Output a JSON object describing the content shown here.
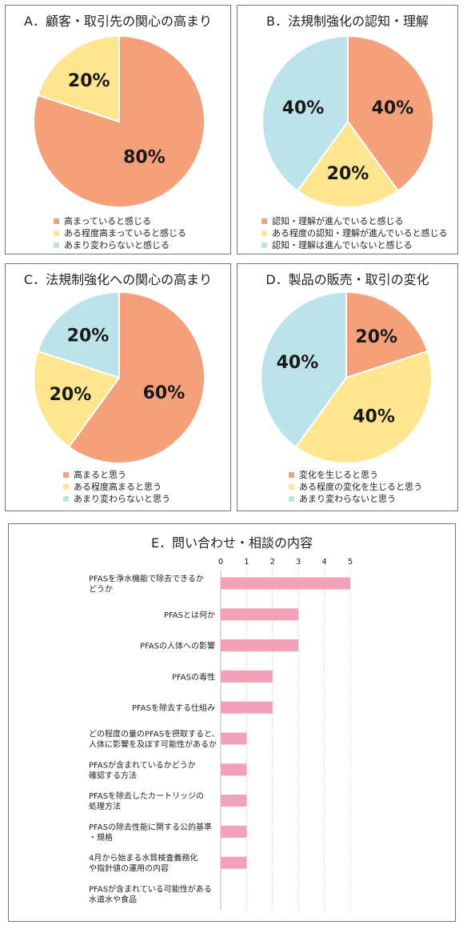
{
  "chart_data": [
    {
      "type": "pie",
      "title": "A．顧客・取引先の関心の高まり",
      "slices": [
        {
          "label": "高まっていると感じる",
          "value": 80,
          "text": "80%",
          "color": "#f4a07a"
        },
        {
          "label": "ある程度高まっていると感じる",
          "value": 20,
          "text": "20%",
          "color": "#fde68f"
        },
        {
          "label": "あまり変わらないと感じる",
          "value": 0,
          "text": "",
          "color": "#bde3ea"
        }
      ],
      "legend_position": "bottom"
    },
    {
      "type": "pie",
      "title": "B．法規制強化の認知・理解",
      "slices": [
        {
          "label": "認知・理解が進んでいると感じる",
          "value": 40,
          "text": "40%",
          "color": "#f4a07a"
        },
        {
          "label": "ある程度の認知・理解が進んでいると感じる",
          "value": 20,
          "text": "20%",
          "color": "#fde68f"
        },
        {
          "label": "認知・理解は進んでいないと感じる",
          "value": 40,
          "text": "40%",
          "color": "#bde3ea"
        }
      ],
      "legend_position": "bottom"
    },
    {
      "type": "pie",
      "title": "C．法規制強化への関心の高まり",
      "slices": [
        {
          "label": "高まると思う",
          "value": 60,
          "text": "60%",
          "color": "#f4a07a"
        },
        {
          "label": "ある程度高まると思う",
          "value": 20,
          "text": "20%",
          "color": "#fde68f"
        },
        {
          "label": "あまり変わらないと思う",
          "value": 20,
          "text": "20%",
          "color": "#bde3ea"
        }
      ],
      "legend_position": "bottom"
    },
    {
      "type": "pie",
      "title": "D．製品の販売・取引の変化",
      "slices": [
        {
          "label": "変化を生じると思う",
          "value": 20,
          "text": "20%",
          "color": "#f4a07a"
        },
        {
          "label": "ある程度の変化を生じると思う",
          "value": 40,
          "text": "40%",
          "color": "#fde68f"
        },
        {
          "label": "あまり変わらないと思う",
          "value": 40,
          "text": "40%",
          "color": "#bde3ea"
        }
      ],
      "legend_position": "bottom"
    },
    {
      "type": "bar",
      "orientation": "horizontal",
      "title": "E．問い合わせ・相談の内容",
      "xlim": [
        0,
        5
      ],
      "ticks": [
        "0",
        "1",
        "2",
        "3",
        "4",
        "5"
      ],
      "bar_color": "#f2a2b8",
      "categories": [
        [
          "PFASを浄水機能で除去できるか",
          "どうか"
        ],
        [
          "PFASとは何か"
        ],
        [
          "PFASの人体への影響"
        ],
        [
          "PFASの毒性"
        ],
        [
          "PFASを除去する仕組み"
        ],
        [
          "どの程度の量のPFASを摂取すると、",
          "人体に影響を及ぼす可能性があるか"
        ],
        [
          "PFASが含まれているかどうか",
          "確認する方法"
        ],
        [
          "PFASを除去したカートリッジの",
          "処理方法"
        ],
        [
          "PFASの除去性能に関する公的基準",
          "・規格"
        ],
        [
          "4月から始まる水質検査義務化",
          "や指針値の運用の内容"
        ],
        [
          "PFASが含まれている可能性がある",
          "水道水や食品"
        ]
      ],
      "values": [
        5,
        3,
        3,
        2,
        2,
        1,
        1,
        1,
        1,
        1,
        0
      ]
    }
  ]
}
